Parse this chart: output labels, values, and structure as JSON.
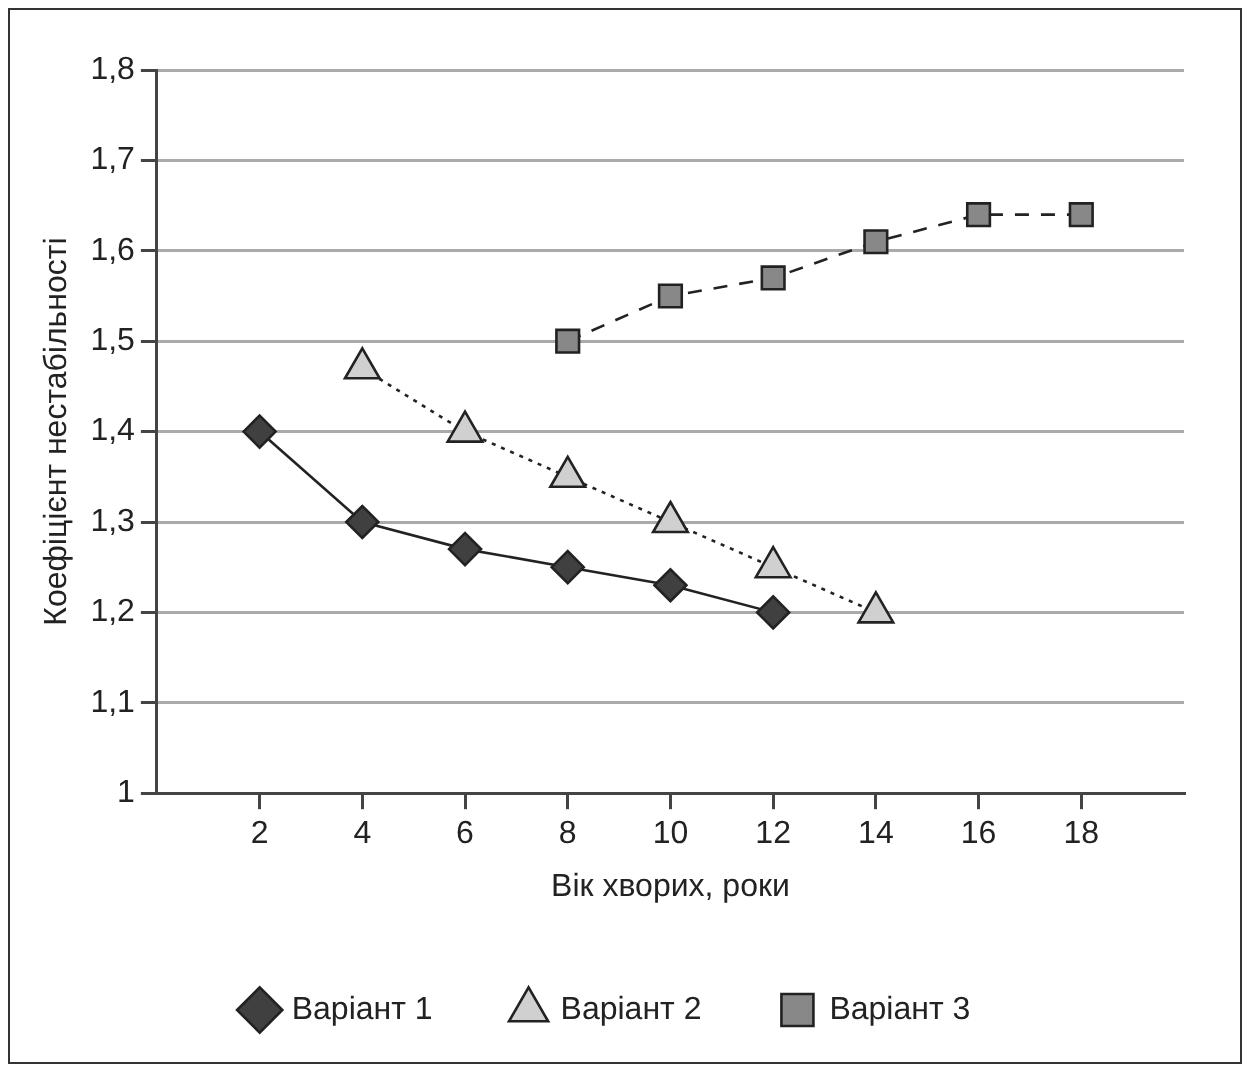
{
  "chart_data": {
    "type": "line",
    "xlabel": "Вік хворих, роки",
    "ylabel": "Коефіцієнт нестабільності",
    "xlim": [
      0,
      20
    ],
    "xticks": [
      2,
      4,
      6,
      8,
      10,
      12,
      14,
      16,
      18
    ],
    "ylim": [
      1,
      1.8
    ],
    "yticks": [
      {
        "value": 1,
        "label": "1"
      },
      {
        "value": 1.1,
        "label": "1,1"
      },
      {
        "value": 1.2,
        "label": "1,2"
      },
      {
        "value": 1.3,
        "label": "1,3"
      },
      {
        "value": 1.4,
        "label": "1,4"
      },
      {
        "value": 1.5,
        "label": "1,5"
      },
      {
        "value": 1.6,
        "label": "1,6"
      },
      {
        "value": 1.7,
        "label": "1,7"
      },
      {
        "value": 1.8,
        "label": "1,8"
      }
    ],
    "grid": "y",
    "legend": "bottom",
    "series": [
      {
        "name": "Варіант 1",
        "color": "#404040",
        "marker": "diamond",
        "line_style": "solid",
        "x": [
          2,
          4,
          6,
          8,
          10,
          12
        ],
        "values": [
          1.4,
          1.3,
          1.27,
          1.25,
          1.23,
          1.2
        ]
      },
      {
        "name": "Варіант 2",
        "color": "#d0d0d0",
        "marker": "triangle",
        "line_style": "dotted",
        "x": [
          4,
          6,
          8,
          10,
          12,
          14
        ],
        "values": [
          1.47,
          1.4,
          1.35,
          1.3,
          1.25,
          1.2
        ]
      },
      {
        "name": "Варіант 3",
        "color": "#888888",
        "marker": "square",
        "line_style": "dashed",
        "x": [
          8,
          10,
          12,
          14,
          16,
          18
        ],
        "values": [
          1.5,
          1.55,
          1.57,
          1.61,
          1.64,
          1.64
        ]
      }
    ]
  }
}
